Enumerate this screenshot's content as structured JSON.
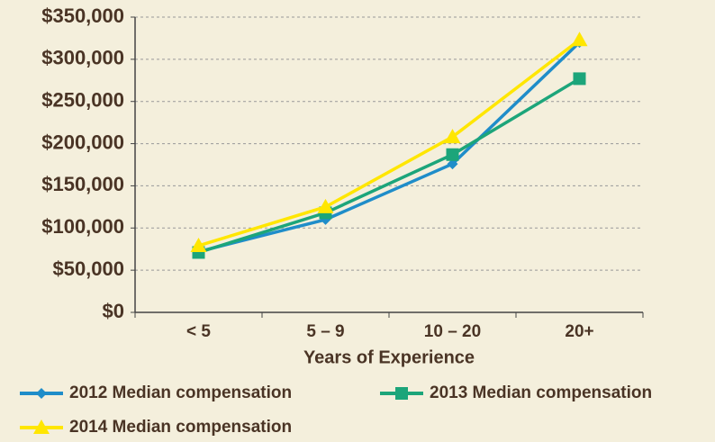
{
  "chart_data": {
    "type": "line",
    "x_label": "Years of Experience",
    "categories": [
      "< 5",
      "5 – 9",
      "10 – 20",
      "20+"
    ],
    "series": [
      {
        "name": "2012 Median compensation",
        "color": "#1f8dc9",
        "marker": "diamond",
        "values": [
          72000,
          110000,
          176000,
          320000
        ]
      },
      {
        "name": "2013 Median compensation",
        "color": "#1ca57a",
        "marker": "square",
        "values": [
          71000,
          118000,
          187000,
          277000
        ]
      },
      {
        "name": "2014 Median compensation",
        "color": "#ffe600",
        "marker": "triangle",
        "values": [
          79000,
          125000,
          208000,
          323000
        ]
      }
    ],
    "ylim": [
      0,
      350000
    ],
    "yticks": [
      {
        "value": 0,
        "label": "$0"
      },
      {
        "value": 50000,
        "label": "$50,000"
      },
      {
        "value": 100000,
        "label": "$100,000"
      },
      {
        "value": 150000,
        "label": "$150,000"
      },
      {
        "value": 200000,
        "label": "$200,000"
      },
      {
        "value": 250000,
        "label": "$250,000"
      },
      {
        "value": 300000,
        "label": "$300,000"
      },
      {
        "value": 350000,
        "label": "$350,000"
      }
    ],
    "grid": true,
    "legend": "bottom"
  }
}
